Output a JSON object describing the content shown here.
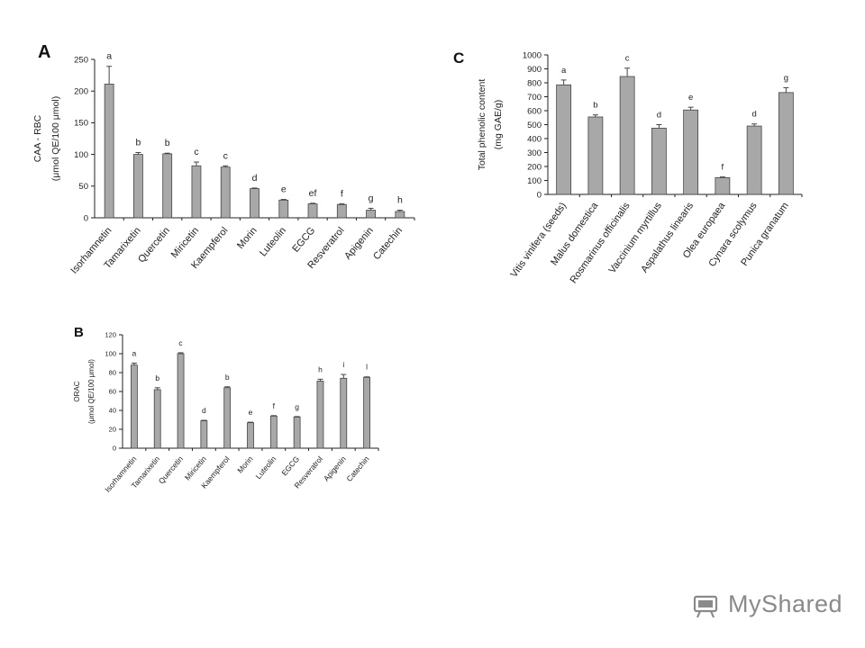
{
  "chart_data": [
    {
      "panel": "A",
      "type": "bar",
      "ylabel": [
        "CAA - RBC",
        "(μmol QE/100 μmol)"
      ],
      "ylim": [
        0,
        250
      ],
      "yticks": [
        0,
        50,
        100,
        150,
        200,
        250
      ],
      "categories": [
        "Isorhamnetin",
        "Tamarixetin",
        "Quercetin",
        "Miricetin",
        "Kaempferol",
        "Morin",
        "Luteolin",
        "EGCG",
        "Resveratrol",
        "Apigenin",
        "Catechin"
      ],
      "values": [
        211,
        100,
        101,
        82,
        80,
        46,
        28,
        22,
        21,
        12,
        10
      ],
      "errors": [
        28,
        3,
        1,
        6,
        2,
        1,
        1,
        1,
        1,
        3,
        2
      ],
      "letters": [
        "a",
        "b",
        "b",
        "c",
        "c",
        "d",
        "e",
        "ef",
        "f",
        "g",
        "h"
      ]
    },
    {
      "panel": "B",
      "type": "bar",
      "ylabel": [
        "ORAC",
        "(μmol QE/100 μmol)"
      ],
      "ylim": [
        0,
        120
      ],
      "yticks": [
        0,
        20,
        40,
        60,
        80,
        100,
        120
      ],
      "categories": [
        "Isorhamnetin",
        "Tamarixetin",
        "Quercetin",
        "Miricetin",
        "Kaempferol",
        "Morin",
        "Luteolin",
        "EGCG",
        "Resveratrol",
        "Apigenin",
        "Catechin"
      ],
      "values": [
        88,
        62,
        100,
        29,
        64,
        27,
        34,
        33,
        71,
        74,
        75
      ],
      "errors": [
        2,
        2,
        1,
        0.5,
        1,
        0.5,
        0.5,
        0.5,
        2,
        4,
        0.5
      ],
      "letters": [
        "a",
        "b",
        "c",
        "d",
        "b",
        "e",
        "f",
        "g",
        "h",
        "i",
        "l"
      ]
    },
    {
      "panel": "C",
      "type": "bar",
      "ylabel": [
        "Total phenolic content",
        "(mg GAE/g)"
      ],
      "ylim": [
        0,
        1000
      ],
      "yticks": [
        0,
        100,
        200,
        300,
        400,
        500,
        600,
        700,
        800,
        900,
        1000
      ],
      "categories": [
        "Vitis vinifera (seeds)",
        "Malus domestica",
        "Rosmarinus officinalis",
        "Vaccinium myrtillus",
        "Aspalathus linearis",
        "Olea europaea",
        "Cynara scolymus",
        "Punica granatum"
      ],
      "values": [
        785,
        555,
        845,
        475,
        605,
        120,
        490,
        730
      ],
      "errors": [
        35,
        15,
        60,
        25,
        20,
        5,
        15,
        35
      ],
      "letters": [
        "a",
        "b",
        "c",
        "d",
        "e",
        "f",
        "d",
        "g"
      ]
    }
  ],
  "watermark": {
    "text": "MyShared",
    "icon": "projector-icon",
    "color": "#8a8a8a"
  }
}
